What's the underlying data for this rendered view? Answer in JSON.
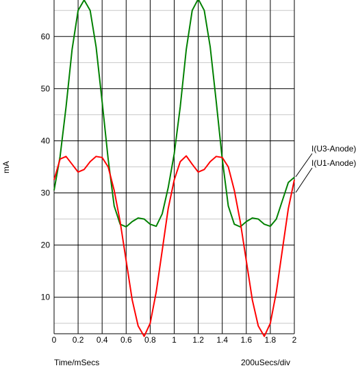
{
  "chart_data": {
    "type": "line",
    "title": "",
    "xlabel": "Time/mSecs",
    "ylabel": "mA",
    "scale_label": "200uSecs/div",
    "xlim": [
      0,
      2
    ],
    "ylim": [
      3,
      67
    ],
    "grid": true,
    "x_ticks": [
      "0",
      "0.2",
      "0.4",
      "0.6",
      "0.8",
      "1",
      "1.2",
      "1.4",
      "1.6",
      "1.8",
      "2"
    ],
    "y_ticks": [
      "10",
      "20",
      "30",
      "40",
      "50",
      "60"
    ],
    "series": [
      {
        "name": "I(U3-Anode)",
        "color": "#008000",
        "x": [
          0.0,
          0.05,
          0.1,
          0.15,
          0.2,
          0.25,
          0.3,
          0.35,
          0.4,
          0.45,
          0.5,
          0.55,
          0.6,
          0.65,
          0.7,
          0.75,
          0.8,
          0.85,
          0.9,
          0.95,
          1.0,
          1.05,
          1.1,
          1.15,
          1.2,
          1.25,
          1.3,
          1.35,
          1.4,
          1.45,
          1.5,
          1.55,
          1.6,
          1.65,
          1.7,
          1.75,
          1.8,
          1.85,
          1.9,
          1.95,
          2.0
        ],
        "values": [
          30.5,
          37.0,
          46.5,
          57.5,
          65.0,
          67.0,
          65.0,
          58.0,
          47.5,
          36.5,
          27.5,
          24.0,
          23.5,
          24.5,
          25.2,
          25.0,
          24.0,
          23.6,
          26.0,
          31.0,
          37.5,
          46.5,
          57.5,
          65.0,
          67.2,
          65.0,
          58.0,
          47.5,
          36.5,
          27.5,
          24.0,
          23.5,
          24.5,
          25.2,
          25.0,
          24.0,
          23.6,
          25.0,
          28.5,
          32.0,
          33.0
        ]
      },
      {
        "name": "I(U1-Anode)",
        "color": "#ff0000",
        "x": [
          0.0,
          0.05,
          0.1,
          0.15,
          0.2,
          0.25,
          0.3,
          0.35,
          0.4,
          0.45,
          0.5,
          0.55,
          0.6,
          0.65,
          0.7,
          0.75,
          0.8,
          0.85,
          0.9,
          0.95,
          1.0,
          1.05,
          1.1,
          1.15,
          1.2,
          1.25,
          1.3,
          1.35,
          1.4,
          1.45,
          1.5,
          1.55,
          1.6,
          1.65,
          1.7,
          1.75,
          1.8,
          1.85,
          1.9,
          1.95,
          2.0
        ],
        "values": [
          32.5,
          36.5,
          37.0,
          35.5,
          34.0,
          34.5,
          36.0,
          37.0,
          36.8,
          35.0,
          30.5,
          24.5,
          17.0,
          9.5,
          4.5,
          2.5,
          5.0,
          11.0,
          19.0,
          27.0,
          32.5,
          36.0,
          37.1,
          35.5,
          34.0,
          34.5,
          36.0,
          37.0,
          36.8,
          35.0,
          30.5,
          24.5,
          17.0,
          9.5,
          4.5,
          2.5,
          5.0,
          11.0,
          19.0,
          27.0,
          32.5
        ]
      }
    ]
  }
}
